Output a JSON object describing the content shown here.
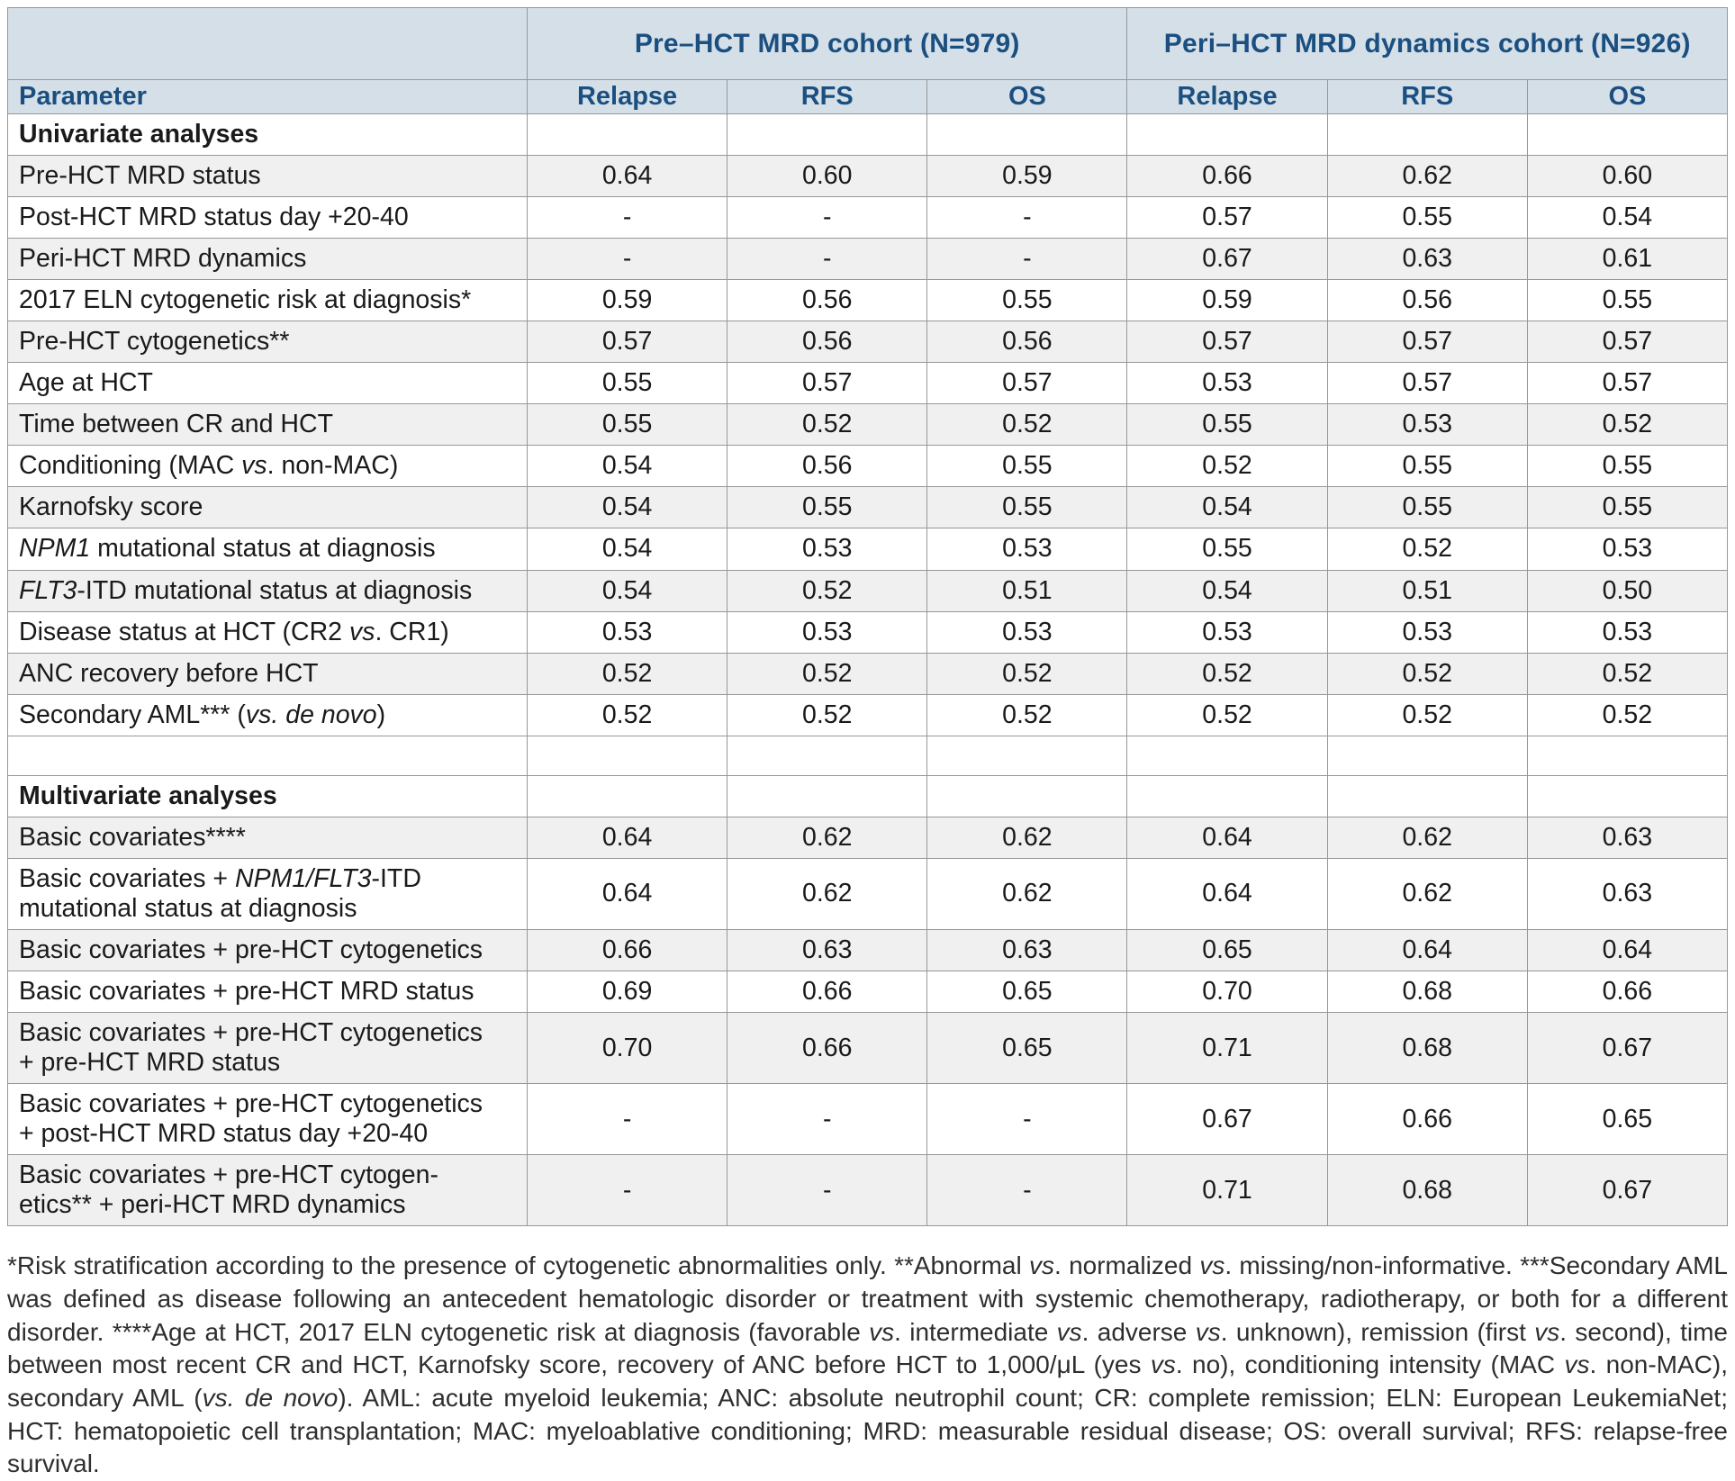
{
  "style": {
    "header_bg": "#d5dfe8",
    "header_text": "#1a4f80",
    "stripe_bg": "#f0f0f0",
    "row_bg": "#ffffff",
    "border_color": "#979797",
    "body_text": "#1a1a1a",
    "footnote_text": "#2e2e2e"
  },
  "table": {
    "cohort_headers": [
      "Pre–HCT MRD cohort (N=979)",
      "Peri–HCT MRD dynamics cohort (N=926)"
    ],
    "param_header": "Parameter",
    "sub_headers": [
      "Relapse",
      "RFS",
      "OS",
      "Relapse",
      "RFS",
      "OS"
    ],
    "sections": [
      {
        "title": "Univariate analyses",
        "rows": [
          {
            "param": [
              {
                "t": "Pre-HCT MRD status"
              }
            ],
            "values": [
              "0.64",
              "0.60",
              "0.59",
              "0.66",
              "0.62",
              "0.60"
            ]
          },
          {
            "param": [
              {
                "t": "Post-HCT MRD status day +20-40"
              }
            ],
            "values": [
              "-",
              "-",
              "-",
              "0.57",
              "0.55",
              "0.54"
            ]
          },
          {
            "param": [
              {
                "t": "Peri-HCT MRD dynamics"
              }
            ],
            "values": [
              "-",
              "-",
              "-",
              "0.67",
              "0.63",
              "0.61"
            ]
          },
          {
            "param": [
              {
                "t": "2017 ELN cytogenetic risk at diagnosis*"
              }
            ],
            "values": [
              "0.59",
              "0.56",
              "0.55",
              "0.59",
              "0.56",
              "0.55"
            ]
          },
          {
            "param": [
              {
                "t": "Pre-HCT cytogenetics**"
              }
            ],
            "values": [
              "0.57",
              "0.56",
              "0.56",
              "0.57",
              "0.57",
              "0.57"
            ]
          },
          {
            "param": [
              {
                "t": "Age at HCT"
              }
            ],
            "values": [
              "0.55",
              "0.57",
              "0.57",
              "0.53",
              "0.57",
              "0.57"
            ]
          },
          {
            "param": [
              {
                "t": "Time between CR and HCT"
              }
            ],
            "values": [
              "0.55",
              "0.52",
              "0.52",
              "0.55",
              "0.53",
              "0.52"
            ]
          },
          {
            "param": [
              {
                "t": "Conditioning (MAC "
              },
              {
                "t": "vs",
                "i": true
              },
              {
                "t": ". non-MAC)"
              }
            ],
            "values": [
              "0.54",
              "0.56",
              "0.55",
              "0.52",
              "0.55",
              "0.55"
            ]
          },
          {
            "param": [
              {
                "t": "Karnofsky score"
              }
            ],
            "values": [
              "0.54",
              "0.55",
              "0.55",
              "0.54",
              "0.55",
              "0.55"
            ]
          },
          {
            "param": [
              {
                "t": "NPM1",
                "i": true
              },
              {
                "t": " mutational status at diagnosis"
              }
            ],
            "values": [
              "0.54",
              "0.53",
              "0.53",
              "0.55",
              "0.52",
              "0.53"
            ]
          },
          {
            "param": [
              {
                "t": "FLT3",
                "i": true
              },
              {
                "t": "-ITD mutational status at diagnosis"
              }
            ],
            "values": [
              "0.54",
              "0.52",
              "0.51",
              "0.54",
              "0.51",
              "0.50"
            ]
          },
          {
            "param": [
              {
                "t": "Disease status at HCT (CR2 "
              },
              {
                "t": "vs",
                "i": true
              },
              {
                "t": ". CR1)"
              }
            ],
            "values": [
              "0.53",
              "0.53",
              "0.53",
              "0.53",
              "0.53",
              "0.53"
            ]
          },
          {
            "param": [
              {
                "t": "ANC recovery before HCT"
              }
            ],
            "values": [
              "0.52",
              "0.52",
              "0.52",
              "0.52",
              "0.52",
              "0.52"
            ]
          },
          {
            "param": [
              {
                "t": "Secondary AML*** ("
              },
              {
                "t": "vs. de novo",
                "i": true
              },
              {
                "t": ")"
              }
            ],
            "values": [
              "0.52",
              "0.52",
              "0.52",
              "0.52",
              "0.52",
              "0.52"
            ]
          }
        ]
      },
      {
        "title": "Multivariate analyses",
        "rows": [
          {
            "param": [
              {
                "t": "Basic covariates****"
              }
            ],
            "values": [
              "0.64",
              "0.62",
              "0.62",
              "0.64",
              "0.62",
              "0.63"
            ]
          },
          {
            "param": [
              {
                "t": "Basic covariates + "
              },
              {
                "t": "NPM1/FLT3",
                "i": true
              },
              {
                "t": "-ITD"
              },
              {
                "br": true
              },
              {
                "t": "mutational status at diagnosis"
              }
            ],
            "values": [
              "0.64",
              "0.62",
              "0.62",
              "0.64",
              "0.62",
              "0.63"
            ]
          },
          {
            "param": [
              {
                "t": "Basic covariates + pre-HCT cytogenetics"
              }
            ],
            "values": [
              "0.66",
              "0.63",
              "0.63",
              "0.65",
              "0.64",
              "0.64"
            ]
          },
          {
            "param": [
              {
                "t": "Basic covariates + pre-HCT MRD status"
              }
            ],
            "values": [
              "0.69",
              "0.66",
              "0.65",
              "0.70",
              "0.68",
              "0.66"
            ]
          },
          {
            "param": [
              {
                "t": "Basic covariates + pre-HCT cytogenetics"
              },
              {
                "br": true
              },
              {
                "t": "+ pre-HCT MRD status"
              }
            ],
            "values": [
              "0.70",
              "0.66",
              "0.65",
              "0.71",
              "0.68",
              "0.67"
            ]
          },
          {
            "param": [
              {
                "t": "Basic covariates + pre-HCT cytogenetics"
              },
              {
                "br": true
              },
              {
                "t": "+ post-HCT MRD status day +20-40"
              }
            ],
            "values": [
              "-",
              "-",
              "-",
              "0.67",
              "0.66",
              "0.65"
            ]
          },
          {
            "param": [
              {
                "t": "Basic covariates + pre-HCT cytogen-"
              },
              {
                "br": true
              },
              {
                "t": "etics** + peri-HCT MRD dynamics"
              }
            ],
            "values": [
              "-",
              "-",
              "-",
              "0.71",
              "0.68",
              "0.67"
            ]
          }
        ]
      }
    ]
  },
  "footnote": {
    "segments": [
      {
        "t": "*Risk stratification according to the presence of cytogenetic abnormalities only. **Abnormal "
      },
      {
        "t": "vs",
        "i": true
      },
      {
        "t": ". normalized "
      },
      {
        "t": "vs",
        "i": true
      },
      {
        "t": ". missing/non-informative. ***Secondary AML was defined as disease following an antecedent hematologic disorder or treatment with systemic chemotherapy, radiotherapy, or both for a different disorder. ****Age at HCT, 2017 ELN cytogenetic risk at diagnosis (favorable "
      },
      {
        "t": "vs",
        "i": true
      },
      {
        "t": ". intermediate "
      },
      {
        "t": "vs",
        "i": true
      },
      {
        "t": ". adverse "
      },
      {
        "t": "vs",
        "i": true
      },
      {
        "t": ". unknown), remission (first "
      },
      {
        "t": "vs",
        "i": true
      },
      {
        "t": ". second), time between most recent CR and HCT, Karnofsky score, recovery of ANC before HCT to 1,000/μL (yes "
      },
      {
        "t": "vs",
        "i": true
      },
      {
        "t": ". no), conditioning intensity (MAC "
      },
      {
        "t": "vs",
        "i": true
      },
      {
        "t": ". non-MAC), secondary AML ("
      },
      {
        "t": "vs. de novo",
        "i": true
      },
      {
        "t": "). AML: acute myeloid leukemia; ANC: absolute neutrophil count; CR: complete remission; ELN: European LeukemiaNet; HCT: hematopoietic cell transplantation; MAC: myeloablative conditioning; MRD: measurable residual disease; OS: overall survival; RFS: relapse-free survival."
      }
    ]
  }
}
